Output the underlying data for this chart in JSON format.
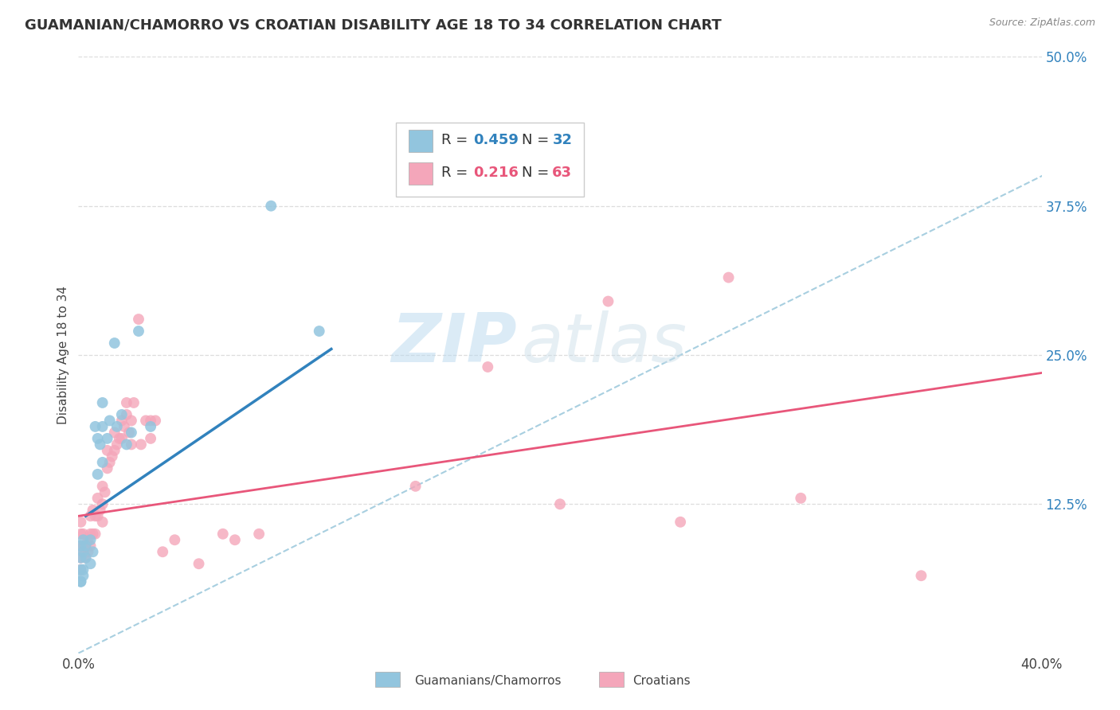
{
  "title": "GUAMANIAN/CHAMORRO VS CROATIAN DISABILITY AGE 18 TO 34 CORRELATION CHART",
  "source": "Source: ZipAtlas.com",
  "xlabel_bottom_left": "0.0%",
  "xlabel_bottom_right": "40.0%",
  "ylabel": "Disability Age 18 to 34",
  "ytick_vals": [
    0.125,
    0.25,
    0.375,
    0.5
  ],
  "ytick_labels": [
    "12.5%",
    "25.0%",
    "37.5%",
    "50.0%"
  ],
  "xlim": [
    0.0,
    0.4
  ],
  "ylim": [
    0.0,
    0.5
  ],
  "color_blue": "#92c5de",
  "color_pink": "#f4a6ba",
  "color_blue_text": "#3182bd",
  "color_pink_text": "#e8567a",
  "color_ref_line": "#a8cfe0",
  "watermark_text": "ZIPatlas",
  "background_color": "#ffffff",
  "guam_x": [
    0.001,
    0.001,
    0.001,
    0.001,
    0.001,
    0.002,
    0.002,
    0.002,
    0.002,
    0.003,
    0.003,
    0.005,
    0.005,
    0.006,
    0.007,
    0.008,
    0.008,
    0.009,
    0.01,
    0.01,
    0.01,
    0.012,
    0.013,
    0.015,
    0.016,
    0.018,
    0.02,
    0.022,
    0.025,
    0.03,
    0.08,
    0.1
  ],
  "guam_y": [
    0.06,
    0.07,
    0.08,
    0.09,
    0.06,
    0.085,
    0.095,
    0.07,
    0.065,
    0.09,
    0.08,
    0.095,
    0.075,
    0.085,
    0.19,
    0.15,
    0.18,
    0.175,
    0.16,
    0.19,
    0.21,
    0.18,
    0.195,
    0.26,
    0.19,
    0.2,
    0.175,
    0.185,
    0.27,
    0.19,
    0.375,
    0.27
  ],
  "croatian_x": [
    0.001,
    0.001,
    0.001,
    0.001,
    0.001,
    0.002,
    0.002,
    0.002,
    0.003,
    0.003,
    0.004,
    0.004,
    0.005,
    0.005,
    0.005,
    0.006,
    0.006,
    0.007,
    0.007,
    0.008,
    0.008,
    0.009,
    0.01,
    0.01,
    0.01,
    0.011,
    0.012,
    0.012,
    0.013,
    0.014,
    0.015,
    0.015,
    0.016,
    0.017,
    0.018,
    0.018,
    0.019,
    0.02,
    0.02,
    0.021,
    0.022,
    0.022,
    0.023,
    0.025,
    0.026,
    0.028,
    0.03,
    0.03,
    0.032,
    0.035,
    0.04,
    0.05,
    0.06,
    0.065,
    0.075,
    0.14,
    0.17,
    0.2,
    0.22,
    0.25,
    0.27,
    0.3,
    0.35
  ],
  "croatian_y": [
    0.07,
    0.08,
    0.09,
    0.1,
    0.11,
    0.085,
    0.09,
    0.1,
    0.08,
    0.09,
    0.085,
    0.095,
    0.09,
    0.1,
    0.115,
    0.1,
    0.12,
    0.1,
    0.115,
    0.115,
    0.13,
    0.12,
    0.11,
    0.125,
    0.14,
    0.135,
    0.155,
    0.17,
    0.16,
    0.165,
    0.17,
    0.185,
    0.175,
    0.18,
    0.18,
    0.195,
    0.19,
    0.2,
    0.21,
    0.185,
    0.195,
    0.175,
    0.21,
    0.28,
    0.175,
    0.195,
    0.18,
    0.195,
    0.195,
    0.085,
    0.095,
    0.075,
    0.1,
    0.095,
    0.1,
    0.14,
    0.24,
    0.125,
    0.295,
    0.11,
    0.315,
    0.13,
    0.065
  ],
  "blue_line_x": [
    0.003,
    0.105
  ],
  "blue_line_y": [
    0.115,
    0.255
  ],
  "pink_line_x": [
    0.0,
    0.4
  ],
  "pink_line_y": [
    0.115,
    0.235
  ],
  "ref_line_x": [
    0.0,
    0.5
  ],
  "ref_line_y": [
    0.0,
    0.5
  ],
  "grid_color": "#dddddd",
  "legend_label1": "Guamanians/Chamorros",
  "legend_label2": "Croatians",
  "title_fontsize": 13,
  "label_fontsize": 11,
  "tick_fontsize": 12,
  "legend_fontsize": 13
}
